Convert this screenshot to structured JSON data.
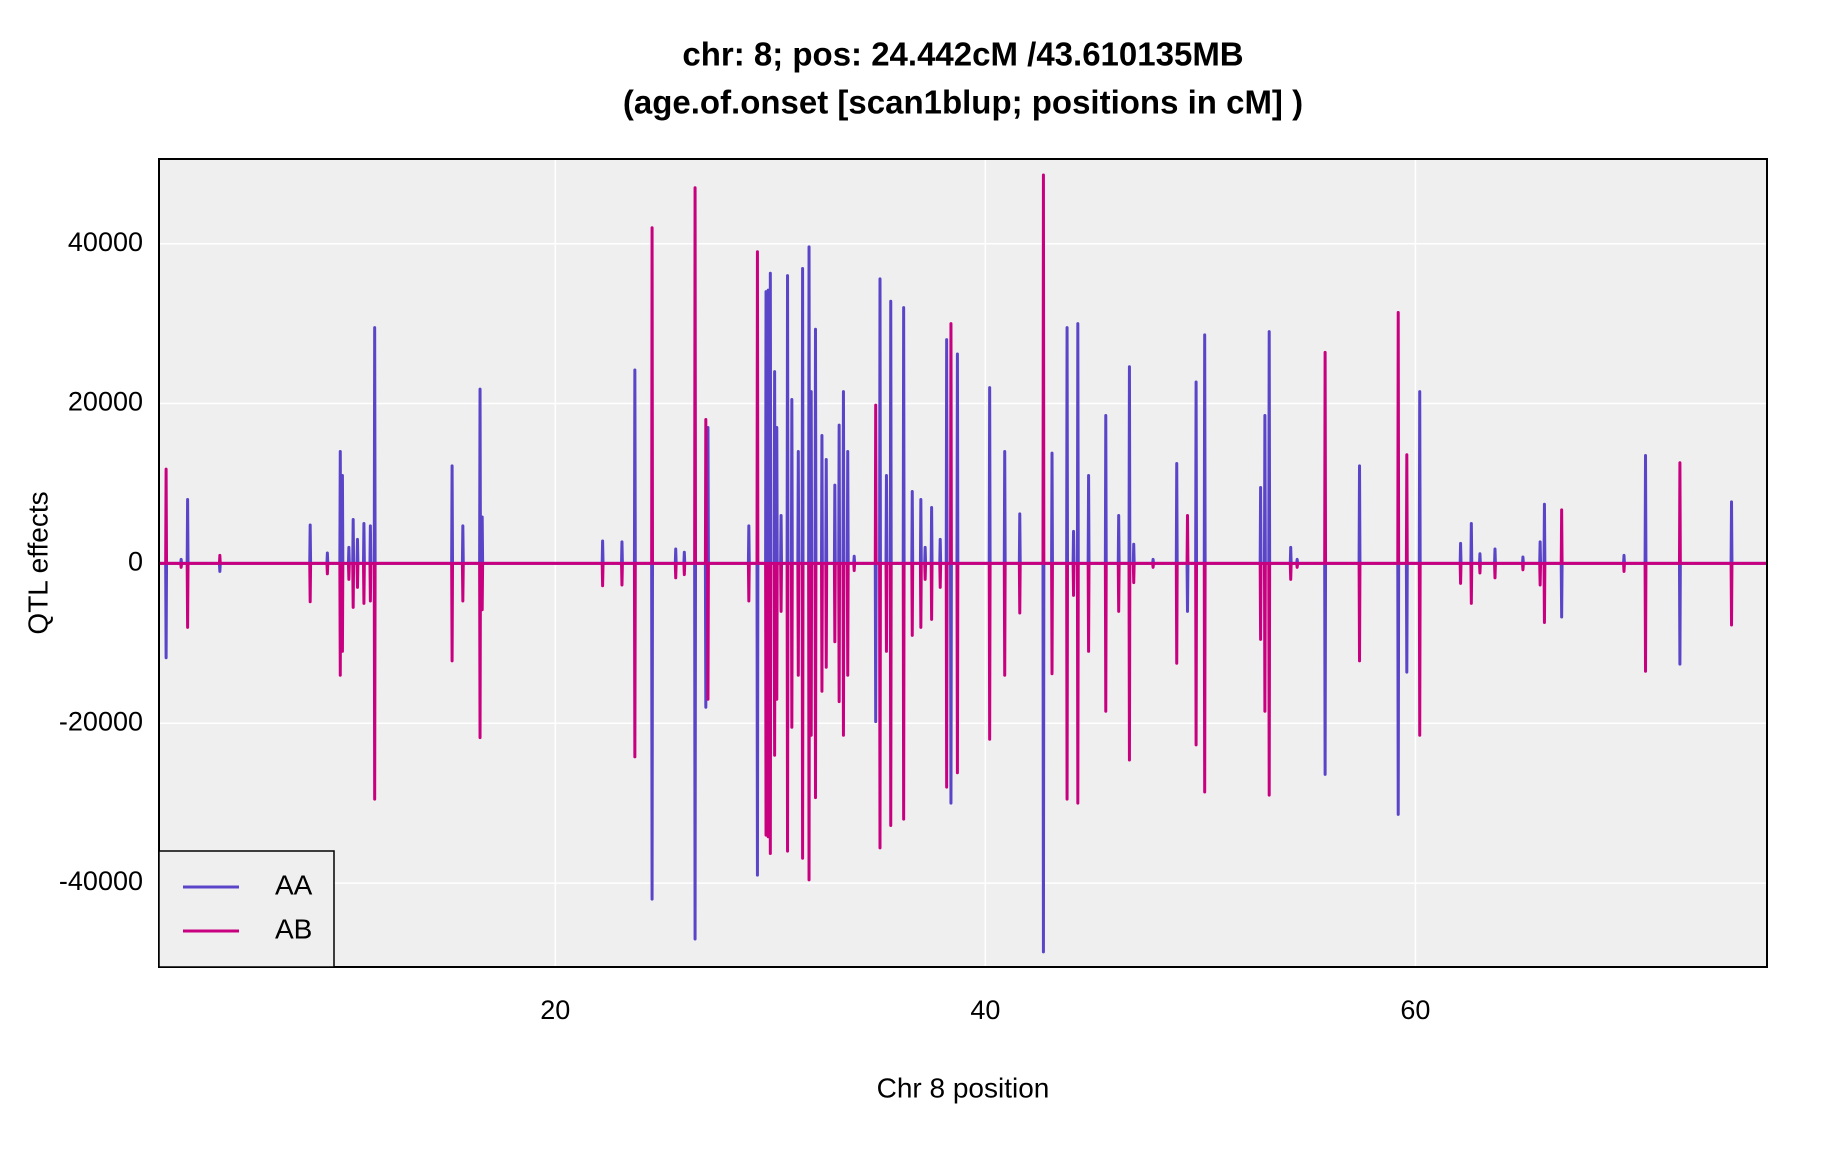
{
  "chart_data": {
    "type": "line",
    "title": "chr: 8; pos: 24.442cM /43.610135MB",
    "subtitle": "(age.of.onset [scan1blup; positions in cM] )",
    "x_label": "Chr 8 position",
    "y_label": "QTL effects",
    "xlim": [
      1.57,
      76.35
    ],
    "xticks": [
      20,
      40,
      60
    ],
    "ylim": [
      -50500,
      50600
    ],
    "yticks": [
      -40000,
      -20000,
      0,
      20000,
      40000
    ],
    "grid": true,
    "legend": "bottom-left",
    "x": [
      1.6,
      1.88,
      1.9,
      1.92,
      2.58,
      2.6,
      2.62,
      2.88,
      2.9,
      2.92,
      4.38,
      4.4,
      4.42,
      8.58,
      8.6,
      8.62,
      9.38,
      9.4,
      9.42,
      9.98,
      10,
      10.02,
      10.08,
      10.1,
      10.12,
      10.38,
      10.4,
      10.42,
      10.58,
      10.6,
      10.62,
      10.78,
      10.8,
      10.82,
      11.08,
      11.1,
      11.12,
      11.38,
      11.4,
      11.42,
      11.58,
      11.6,
      11.62,
      15.18,
      15.2,
      15.22,
      15.68,
      15.7,
      15.72,
      16.48,
      16.5,
      16.52,
      16.58,
      16.6,
      16.62,
      22.18,
      22.2,
      22.22,
      23.08,
      23.1,
      23.12,
      23.68,
      23.7,
      23.72,
      24.48,
      24.5,
      24.52,
      25.58,
      25.6,
      25.62,
      25.98,
      26,
      26.02,
      26.48,
      26.5,
      26.52,
      26.98,
      27,
      27.02,
      27.08,
      27.1,
      27.12,
      28.98,
      29,
      29.02,
      29.38,
      29.4,
      29.42,
      29.78,
      29.8,
      29.82,
      29.88,
      29.9,
      29.92,
      29.98,
      30,
      30.02,
      30.18,
      30.2,
      30.22,
      30.28,
      30.3,
      30.32,
      30.48,
      30.5,
      30.52,
      30.78,
      30.8,
      30.82,
      30.98,
      31,
      31.02,
      31.28,
      31.3,
      31.32,
      31.48,
      31.5,
      31.52,
      31.78,
      31.8,
      31.82,
      31.88,
      31.9,
      31.92,
      32.08,
      32.1,
      32.12,
      32.38,
      32.4,
      32.42,
      32.58,
      32.6,
      32.62,
      32.98,
      33,
      33.02,
      33.18,
      33.2,
      33.22,
      33.38,
      33.4,
      33.42,
      33.58,
      33.6,
      33.62,
      33.88,
      33.9,
      33.92,
      34.88,
      34.9,
      34.92,
      35.08,
      35.1,
      35.12,
      35.38,
      35.4,
      35.42,
      35.58,
      35.6,
      35.62,
      36.18,
      36.2,
      36.22,
      36.58,
      36.6,
      36.62,
      36.98,
      37,
      37.02,
      37.18,
      37.2,
      37.22,
      37.48,
      37.5,
      37.52,
      37.88,
      37.9,
      37.92,
      38.18,
      38.2,
      38.22,
      38.38,
      38.4,
      38.42,
      38.68,
      38.7,
      38.72,
      40.18,
      40.2,
      40.22,
      40.88,
      40.9,
      40.92,
      41.58,
      41.6,
      41.62,
      42.68,
      42.7,
      42.72,
      43.08,
      43.1,
      43.12,
      43.78,
      43.8,
      43.82,
      44.08,
      44.1,
      44.12,
      44.28,
      44.3,
      44.32,
      44.78,
      44.8,
      44.82,
      45.58,
      45.6,
      45.62,
      46.18,
      46.2,
      46.22,
      46.68,
      46.7,
      46.72,
      46.88,
      46.9,
      46.92,
      47.78,
      47.8,
      47.82,
      48.88,
      48.9,
      48.92,
      49.38,
      49.4,
      49.42,
      49.78,
      49.8,
      49.82,
      50.18,
      50.2,
      50.22,
      52.78,
      52.8,
      52.82,
      52.98,
      53,
      53.02,
      53.18,
      53.2,
      53.22,
      54.18,
      54.2,
      54.22,
      54.48,
      54.5,
      54.52,
      55.78,
      55.8,
      55.82,
      57.38,
      57.4,
      57.42,
      59.18,
      59.2,
      59.22,
      59.58,
      59.6,
      59.62,
      60.18,
      60.2,
      60.22,
      62.08,
      62.1,
      62.12,
      62.58,
      62.6,
      62.62,
      62.98,
      63,
      63.02,
      63.68,
      63.7,
      63.72,
      64.98,
      65,
      65.02,
      65.78,
      65.8,
      65.82,
      65.98,
      66,
      66.02,
      66.78,
      66.8,
      66.82,
      69.68,
      69.7,
      69.72,
      70.68,
      70.7,
      70.72,
      72.28,
      72.3,
      72.32,
      74.68,
      74.7,
      74.72,
      76.3
    ],
    "series": [
      {
        "name": "AA",
        "color": "#5a44c8",
        "values": [
          0,
          0,
          -11800,
          0,
          0,
          500,
          0,
          0,
          8000,
          0,
          0,
          -1000,
          0,
          0,
          4800,
          0,
          0,
          1300,
          0,
          0,
          14000,
          0,
          0,
          11000,
          0,
          0,
          2000,
          0,
          0,
          5500,
          0,
          0,
          3000,
          0,
          0,
          5000,
          0,
          0,
          4700,
          0,
          0,
          29500,
          0,
          0,
          12200,
          0,
          0,
          4700,
          0,
          0,
          21800,
          0,
          0,
          5800,
          0,
          0,
          2800,
          0,
          0,
          2700,
          0,
          0,
          24200,
          0,
          0,
          -42000,
          0,
          0,
          1800,
          0,
          0,
          1400,
          0,
          0,
          -47000,
          0,
          0,
          -18000,
          0,
          0,
          17000,
          0,
          0,
          4700,
          0,
          0,
          -39000,
          0,
          0,
          34000,
          0,
          0,
          34200,
          0,
          0,
          36300,
          0,
          0,
          24000,
          0,
          0,
          17000,
          0,
          0,
          6000,
          0,
          0,
          36000,
          0,
          0,
          20500,
          0,
          0,
          14000,
          0,
          0,
          36900,
          0,
          0,
          39600,
          0,
          0,
          21500,
          0,
          0,
          29300,
          0,
          0,
          16000,
          0,
          0,
          13000,
          0,
          0,
          9800,
          0,
          0,
          17300,
          0,
          0,
          21500,
          0,
          0,
          14000,
          0,
          0,
          900,
          0,
          0,
          -19800,
          0,
          0,
          35600,
          0,
          0,
          11000,
          0,
          0,
          32800,
          0,
          0,
          32000,
          0,
          0,
          9000,
          0,
          0,
          8000,
          0,
          0,
          2000,
          0,
          0,
          7000,
          0,
          0,
          3000,
          0,
          0,
          28000,
          0,
          0,
          -30000,
          0,
          0,
          26200,
          0,
          0,
          22000,
          0,
          0,
          14000,
          0,
          0,
          6200,
          0,
          0,
          -48600,
          0,
          0,
          13800,
          0,
          0,
          29500,
          0,
          0,
          4000,
          0,
          0,
          30000,
          0,
          0,
          11000,
          0,
          0,
          18500,
          0,
          0,
          6000,
          0,
          0,
          24600,
          0,
          0,
          2400,
          0,
          0,
          500,
          0,
          0,
          12500,
          0,
          0,
          -6000,
          0,
          0,
          22700,
          0,
          0,
          28600,
          0,
          0,
          9500,
          0,
          0,
          18500,
          0,
          0,
          29000,
          0,
          0,
          2000,
          0,
          0,
          500,
          0,
          0,
          -26400,
          0,
          0,
          12200,
          0,
          0,
          -31400,
          0,
          0,
          -13600,
          0,
          0,
          21500,
          0,
          0,
          2500,
          0,
          0,
          5000,
          0,
          0,
          1200,
          0,
          0,
          1800,
          0,
          0,
          800,
          0,
          0,
          2700,
          0,
          0,
          7400,
          0,
          0,
          -6700,
          0,
          0,
          1000,
          0,
          0,
          13500,
          0,
          0,
          -12600,
          0,
          0,
          7700,
          0,
          0
        ]
      },
      {
        "name": "AB",
        "color": "#c8007f",
        "values": [
          0,
          0,
          11800,
          0,
          0,
          -500,
          0,
          0,
          -8000,
          0,
          0,
          1000,
          0,
          0,
          -4800,
          0,
          0,
          -1300,
          0,
          0,
          -14000,
          0,
          0,
          -11000,
          0,
          0,
          -2000,
          0,
          0,
          -5500,
          0,
          0,
          -3000,
          0,
          0,
          -5000,
          0,
          0,
          -4700,
          0,
          0,
          -29500,
          0,
          0,
          -12200,
          0,
          0,
          -4700,
          0,
          0,
          -21800,
          0,
          0,
          -5800,
          0,
          0,
          -2800,
          0,
          0,
          -2700,
          0,
          0,
          -24200,
          0,
          0,
          42000,
          0,
          0,
          -1800,
          0,
          0,
          -1400,
          0,
          0,
          47000,
          0,
          0,
          18000,
          0,
          0,
          -17000,
          0,
          0,
          -4700,
          0,
          0,
          39000,
          0,
          0,
          -34000,
          0,
          0,
          -34200,
          0,
          0,
          -36300,
          0,
          0,
          -24000,
          0,
          0,
          -17000,
          0,
          0,
          -6000,
          0,
          0,
          -36000,
          0,
          0,
          -20500,
          0,
          0,
          -14000,
          0,
          0,
          -36900,
          0,
          0,
          -39600,
          0,
          0,
          -21500,
          0,
          0,
          -29300,
          0,
          0,
          -16000,
          0,
          0,
          -13000,
          0,
          0,
          -9800,
          0,
          0,
          -17300,
          0,
          0,
          -21500,
          0,
          0,
          -14000,
          0,
          0,
          -900,
          0,
          0,
          19800,
          0,
          0,
          -35600,
          0,
          0,
          -11000,
          0,
          0,
          -32800,
          0,
          0,
          -32000,
          0,
          0,
          -9000,
          0,
          0,
          -8000,
          0,
          0,
          -2000,
          0,
          0,
          -7000,
          0,
          0,
          -3000,
          0,
          0,
          -28000,
          0,
          0,
          30000,
          0,
          0,
          -26200,
          0,
          0,
          -22000,
          0,
          0,
          -14000,
          0,
          0,
          -6200,
          0,
          0,
          48600,
          0,
          0,
          -13800,
          0,
          0,
          -29500,
          0,
          0,
          -4000,
          0,
          0,
          -30000,
          0,
          0,
          -11000,
          0,
          0,
          -18500,
          0,
          0,
          -6000,
          0,
          0,
          -24600,
          0,
          0,
          -2400,
          0,
          0,
          -500,
          0,
          0,
          -12500,
          0,
          0,
          6000,
          0,
          0,
          -22700,
          0,
          0,
          -28600,
          0,
          0,
          -9500,
          0,
          0,
          -18500,
          0,
          0,
          -29000,
          0,
          0,
          -2000,
          0,
          0,
          -500,
          0,
          0,
          26400,
          0,
          0,
          -12200,
          0,
          0,
          31400,
          0,
          0,
          13600,
          0,
          0,
          -21500,
          0,
          0,
          -2500,
          0,
          0,
          -5000,
          0,
          0,
          -1200,
          0,
          0,
          -1800,
          0,
          0,
          -800,
          0,
          0,
          -2700,
          0,
          0,
          -7400,
          0,
          0,
          6700,
          0,
          0,
          -1000,
          0,
          0,
          -13500,
          0,
          0,
          12600,
          0,
          0,
          -7700,
          0,
          0
        ]
      }
    ]
  }
}
